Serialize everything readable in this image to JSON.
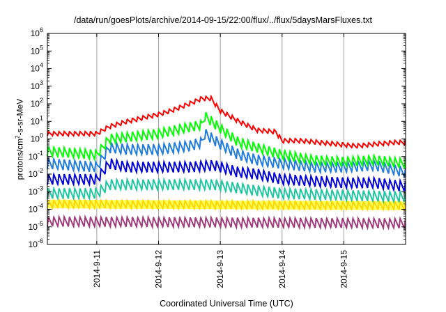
{
  "chart_data": {
    "type": "line",
    "title": "/data/run/goesPlots/archive/2014-09-15/22:00/flux/../flux/5daysMarsFluxes.txt",
    "xlabel": "Coordinated Universal Time (UTC)",
    "ylabel_parts": [
      "protons/cm",
      "2",
      "-s-sr-MeV"
    ],
    "yscale": "log",
    "ylim_exp": [
      -6,
      6
    ],
    "ytick_exponents": [
      -6,
      -5,
      -4,
      -3,
      -2,
      -1,
      0,
      1,
      2,
      3,
      4,
      5,
      6
    ],
    "ytick_base": "10",
    "xlim_days": [
      10.2,
      16.0
    ],
    "xtick_labels": [
      "2014-9-11",
      "2014-9-12",
      "2014-9-13",
      "2014-9-14",
      "2014-9-15"
    ],
    "xtick_days": [
      11,
      12,
      13,
      14,
      15
    ],
    "grid": true,
    "series": [
      {
        "color": "#ff0000",
        "x": [
          10.2,
          11.0,
          11.2,
          11.5,
          12.0,
          12.2,
          12.5,
          12.7,
          12.85,
          13.0,
          13.3,
          13.6,
          13.9,
          14.0,
          14.3,
          14.6,
          14.9,
          15.2,
          15.5,
          15.8,
          16.0
        ],
        "log10y": [
          0.3,
          0.3,
          0.7,
          1.0,
          1.4,
          1.6,
          2.0,
          2.3,
          2.3,
          1.6,
          1.0,
          0.5,
          0.4,
          -0.1,
          -0.1,
          -0.2,
          -0.3,
          -0.4,
          -0.3,
          -0.2,
          -0.2
        ],
        "osc_amp": 0.25,
        "osc_period": 0.085
      },
      {
        "color": "#00ff00",
        "x": [
          10.2,
          11.0,
          11.2,
          11.5,
          12.0,
          12.4,
          12.7,
          12.75,
          13.0,
          13.3,
          13.6,
          14.0,
          14.5,
          15.0,
          15.5,
          16.0
        ],
        "log10y": [
          -0.7,
          -0.9,
          0.0,
          0.1,
          0.3,
          0.6,
          0.8,
          1.3,
          0.6,
          -0.2,
          -0.5,
          -0.9,
          -1.2,
          -1.3,
          -1.2,
          -1.4
        ],
        "osc_amp": 0.55,
        "osc_period": 0.085
      },
      {
        "color": "#1e7be0",
        "x": [
          10.2,
          11.0,
          11.2,
          11.5,
          12.0,
          12.5,
          12.7,
          12.75,
          13.0,
          13.3,
          13.6,
          14.0,
          14.5,
          15.0,
          15.5,
          16.0
        ],
        "log10y": [
          -1.4,
          -1.6,
          -0.5,
          -0.6,
          -0.6,
          -0.4,
          -0.2,
          0.3,
          -0.3,
          -0.9,
          -1.2,
          -1.4,
          -1.6,
          -1.6,
          -1.5,
          -1.9
        ],
        "osc_amp": 0.6,
        "osc_period": 0.085
      },
      {
        "color": "#0000dd",
        "x": [
          10.2,
          11.0,
          11.2,
          11.5,
          12.0,
          12.5,
          12.9,
          13.3,
          13.6,
          14.0,
          14.5,
          15.0,
          15.5,
          16.0
        ],
        "log10y": [
          -2.3,
          -2.3,
          -1.4,
          -1.6,
          -1.6,
          -1.6,
          -1.5,
          -1.9,
          -2.0,
          -2.3,
          -2.4,
          -2.5,
          -2.5,
          -2.7
        ],
        "osc_amp": 0.6,
        "osc_period": 0.085
      },
      {
        "color": "#1fc7a0",
        "x": [
          10.2,
          11.0,
          11.2,
          12.0,
          12.9,
          13.5,
          14.0,
          15.0,
          16.0
        ],
        "log10y": [
          -3.1,
          -3.1,
          -2.6,
          -2.6,
          -2.6,
          -2.9,
          -3.1,
          -3.2,
          -3.3
        ],
        "osc_amp": 0.6,
        "osc_period": 0.085
      },
      {
        "color": "#ffd700",
        "x": [
          10.2,
          16.0
        ],
        "log10y": [
          -3.7,
          -3.8
        ],
        "osc_amp": 0.45,
        "osc_period": 0.085,
        "fill": "#ffff40"
      },
      {
        "color": "#a03a7a",
        "x": [
          10.2,
          16.0
        ],
        "log10y": [
          -4.7,
          -4.8
        ],
        "osc_amp": 0.55,
        "osc_period": 0.085
      }
    ]
  }
}
